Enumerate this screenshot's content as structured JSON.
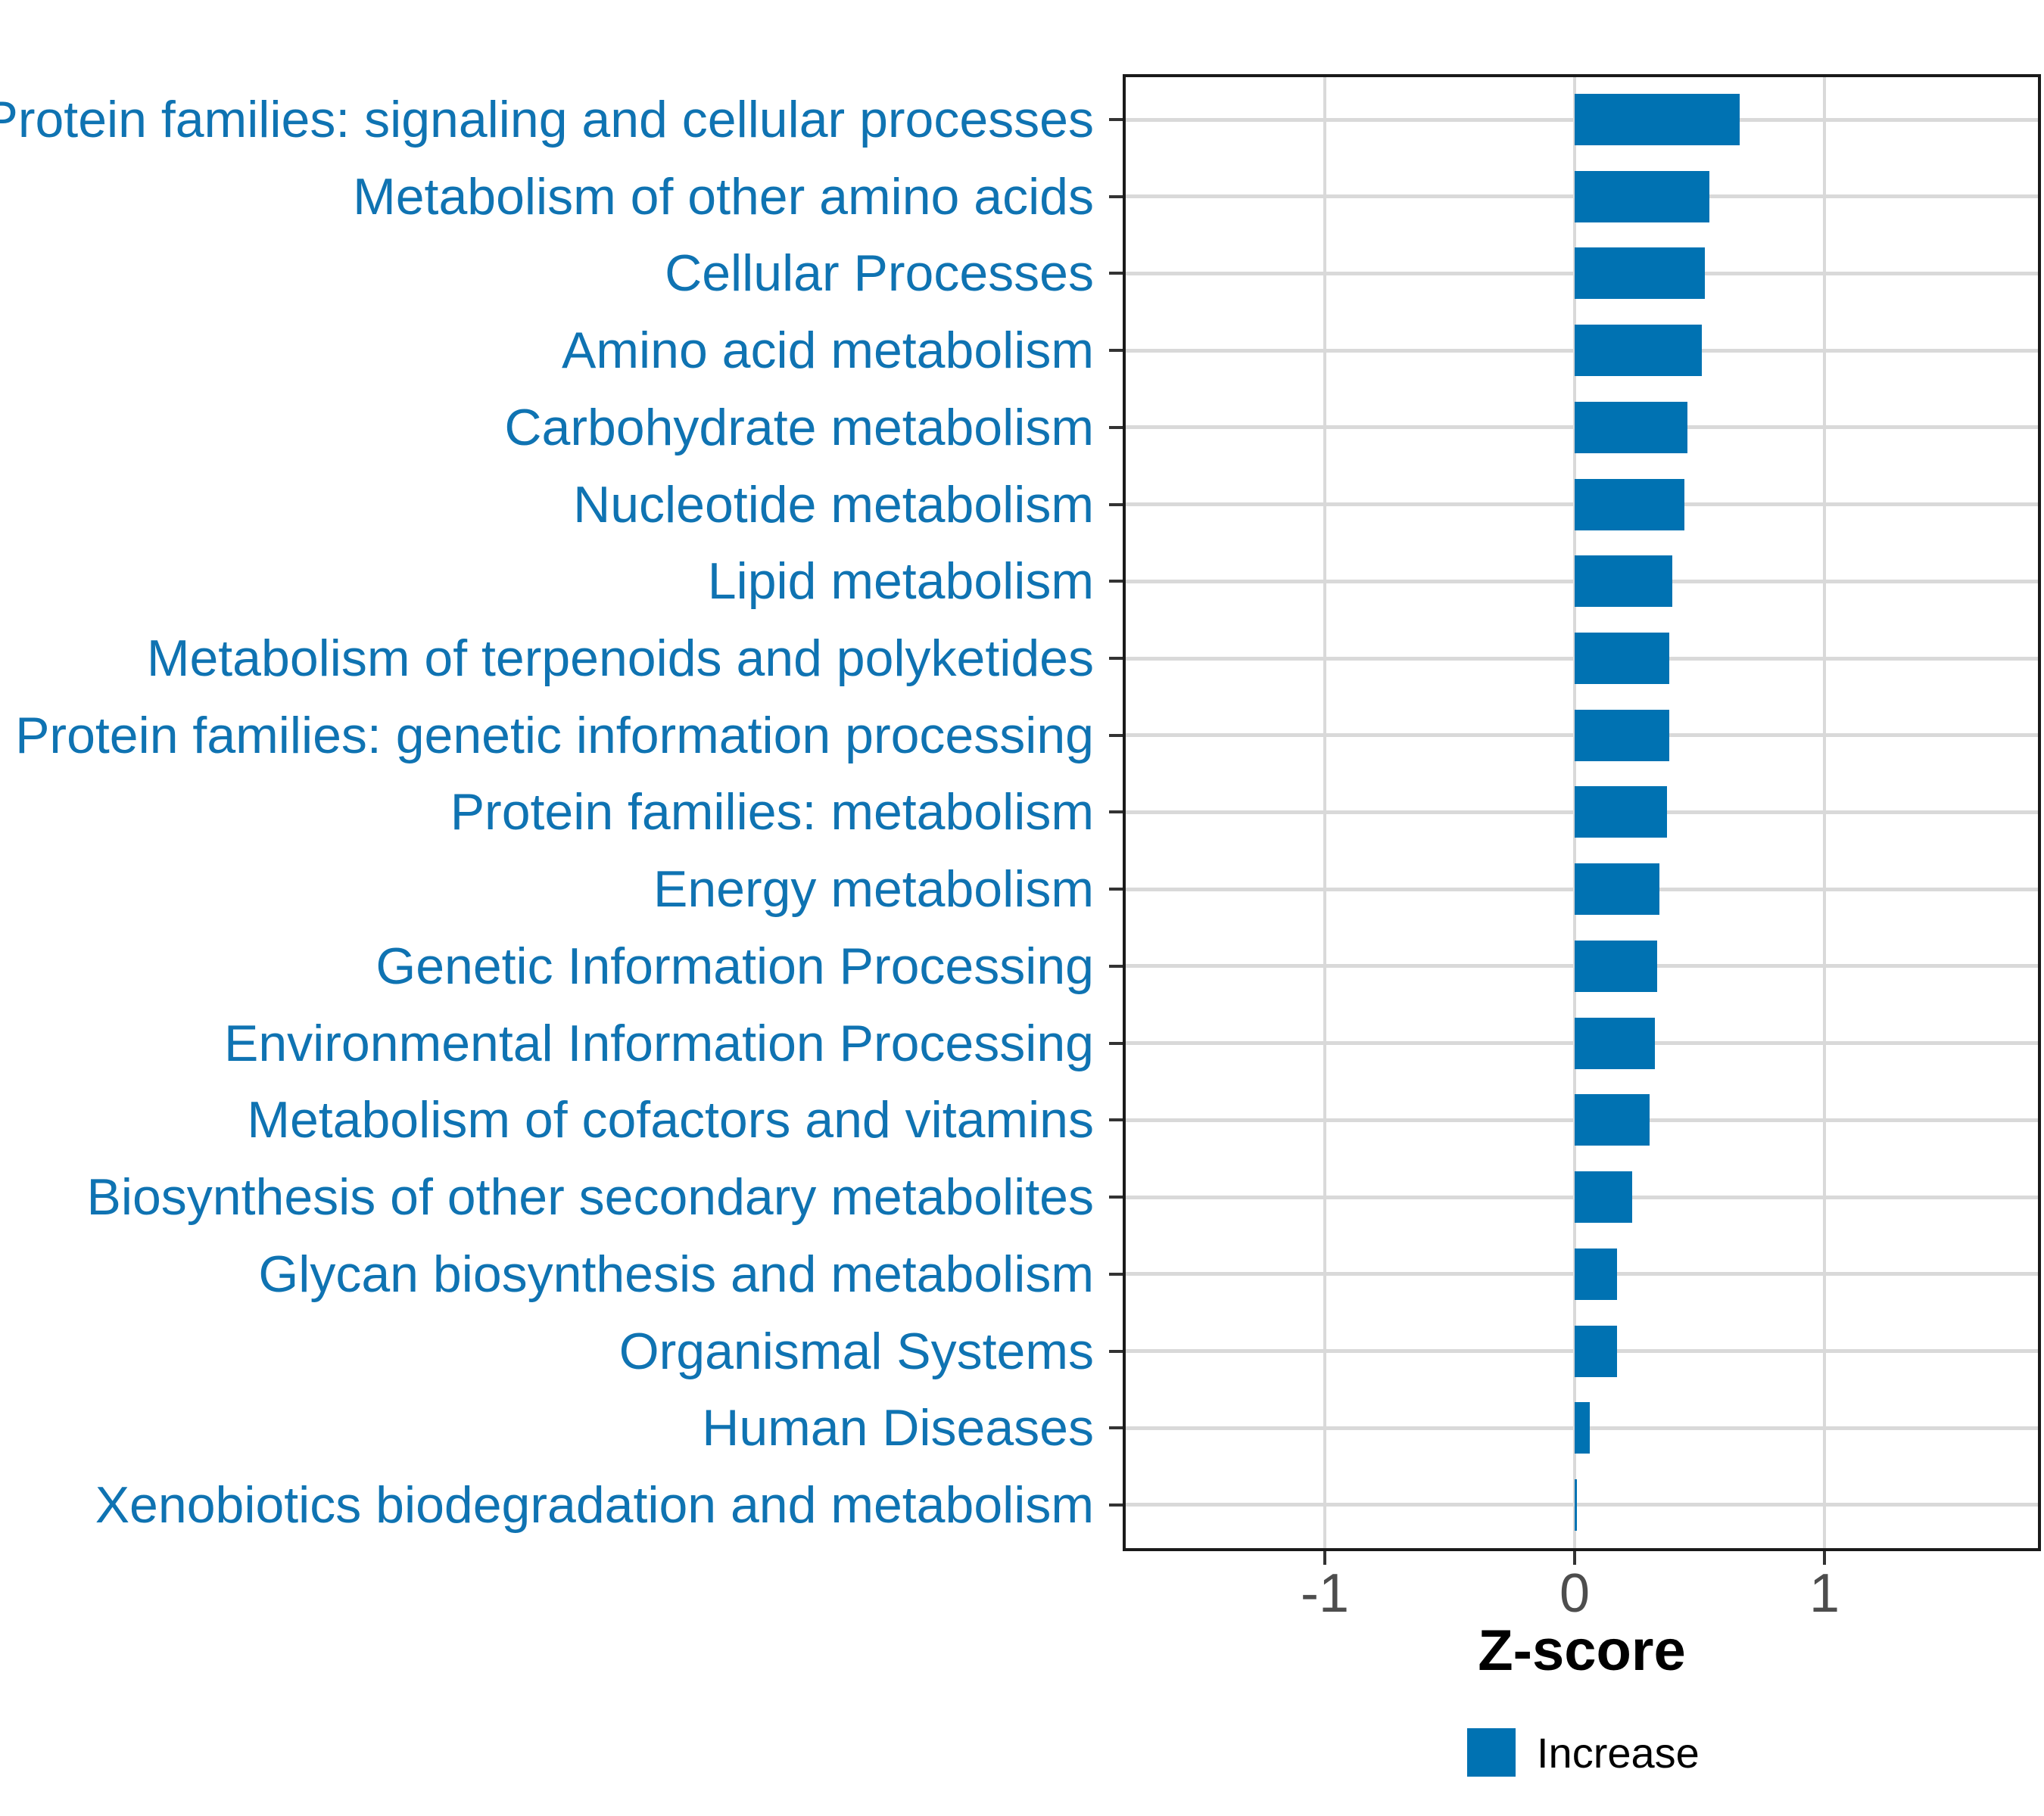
{
  "chart_data": {
    "type": "bar",
    "orientation": "horizontal",
    "title": "",
    "xlabel": "Z-score",
    "ylabel": "",
    "categories": [
      "Protein families: signaling and cellular processes",
      "Metabolism of other amino acids",
      "Cellular Processes",
      "Amino acid metabolism",
      "Carbohydrate metabolism",
      "Nucleotide metabolism",
      "Lipid metabolism",
      "Metabolism of terpenoids and polyketides",
      "Protein families: genetic information processing",
      "Protein families: metabolism",
      "Energy metabolism",
      "Genetic Information Processing",
      "Environmental Information Processing",
      "Metabolism of cofactors and vitamins",
      "Biosynthesis of other secondary metabolites",
      "Glycan biosynthesis and metabolism",
      "Organismal Systems",
      "Human Diseases",
      "Xenobiotics biodegradation and metabolism"
    ],
    "values": [
      0.66,
      0.54,
      0.52,
      0.51,
      0.45,
      0.44,
      0.39,
      0.38,
      0.38,
      0.37,
      0.34,
      0.33,
      0.32,
      0.3,
      0.23,
      0.17,
      0.17,
      0.06,
      0.01
    ],
    "series": [
      {
        "name": "Increase",
        "values": [
          0.66,
          0.54,
          0.52,
          0.51,
          0.45,
          0.44,
          0.39,
          0.38,
          0.38,
          0.37,
          0.34,
          0.33,
          0.32,
          0.3,
          0.23,
          0.17,
          0.17,
          0.06,
          0.01
        ]
      }
    ],
    "xlim": [
      -1.81,
      1.87
    ],
    "x_ticks": [
      -1,
      0,
      1
    ],
    "x_tick_labels": [
      "-1",
      "0",
      "1"
    ],
    "grid": "major-only",
    "legend_position": "bottom"
  },
  "axis": {
    "title": "Z-score"
  },
  "legend": {
    "label": "Increase"
  },
  "colors": {
    "bar": "#0072B2",
    "category_label": "#0F73B2",
    "grid": "#D9D9D9",
    "panel_border": "#1A1A1A",
    "tick_mark": "#333333",
    "tick_label": "#4D4D4D",
    "axis_title": "#000000",
    "legend_text": "#000000",
    "background": "#FFFFFF"
  }
}
